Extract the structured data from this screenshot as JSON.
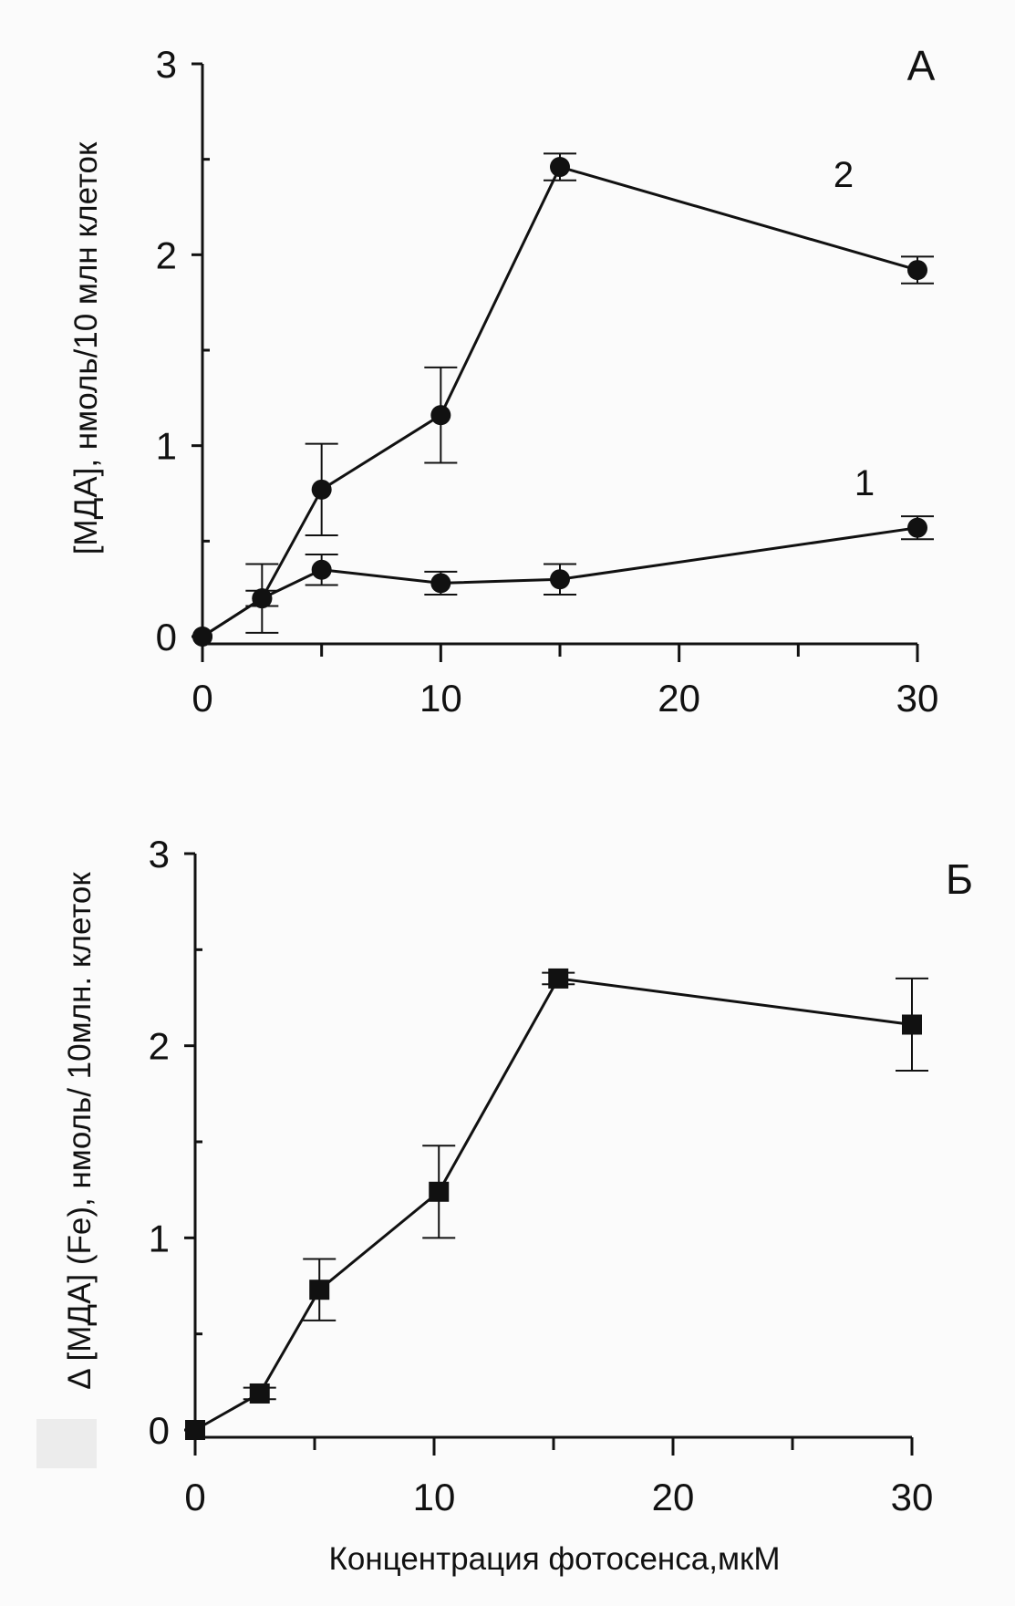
{
  "chart_data": [
    {
      "type": "line",
      "panel_label": "А",
      "xlabel": "",
      "ylabel": "[МДА], нмоль/10 млн клеток",
      "xlim": [
        0,
        30
      ],
      "ylim": [
        0,
        3
      ],
      "x_ticks": [
        "0",
        "10",
        "20",
        "30"
      ],
      "y_ticks": [
        "0",
        "1",
        "2",
        "3"
      ],
      "marker": "circle",
      "series": [
        {
          "name": "1",
          "x": [
            0,
            2.5,
            5,
            10,
            15,
            30
          ],
          "y": [
            0,
            0.2,
            0.35,
            0.28,
            0.3,
            0.57
          ],
          "err": [
            0,
            0.04,
            0.08,
            0.06,
            0.08,
            0.06
          ]
        },
        {
          "name": "2",
          "x": [
            0,
            2.5,
            5,
            10,
            15,
            30
          ],
          "y": [
            0,
            0.2,
            0.77,
            1.16,
            2.46,
            1.92
          ],
          "err": [
            0,
            0.18,
            0.24,
            0.25,
            0.07,
            0.07
          ]
        }
      ]
    },
    {
      "type": "line",
      "panel_label": "Б",
      "xlabel": "Концентрация фотосенса,мкМ",
      "ylabel_prefix": "Δ",
      "ylabel": "[МДА] (Fe), нмоль/ 10млн. клеток",
      "xlim": [
        0,
        30
      ],
      "ylim": [
        0,
        3
      ],
      "x_ticks": [
        "0",
        "10",
        "20",
        "30"
      ],
      "y_ticks": [
        "0",
        "1",
        "2",
        "3"
      ],
      "marker": "square",
      "series": [
        {
          "x": [
            0,
            2.7,
            5.2,
            10.2,
            15.2,
            30
          ],
          "y": [
            0,
            0.19,
            0.73,
            1.24,
            2.35,
            2.11
          ],
          "err": [
            0,
            0.03,
            0.16,
            0.24,
            0.03,
            0.24
          ]
        }
      ]
    }
  ]
}
